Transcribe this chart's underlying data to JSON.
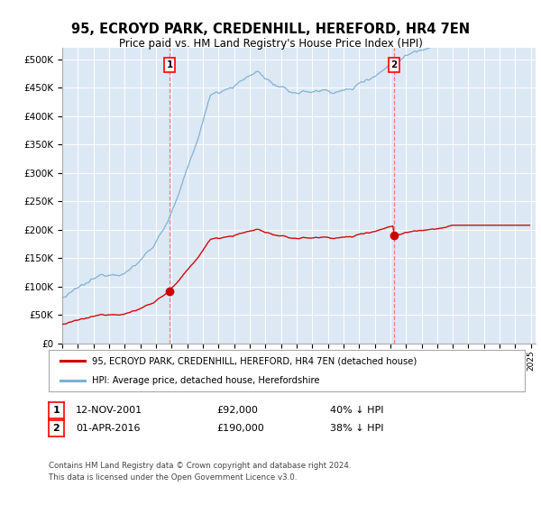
{
  "title1": "95, ECROYD PARK, CREDENHILL, HEREFORD, HR4 7EN",
  "title2": "Price paid vs. HM Land Registry's House Price Index (HPI)",
  "bg_color": "#dde8f5",
  "outer_bg": "#ffffff",
  "red_color": "#cc0000",
  "blue_color": "#7bafd4",
  "marker1_x": 2001.875,
  "marker1_y": 92000,
  "marker2_x": 2016.25,
  "marker2_y": 190000,
  "legend_red": "95, ECROYD PARK, CREDENHILL, HEREFORD, HR4 7EN (detached house)",
  "legend_blue": "HPI: Average price, detached house, Herefordshire",
  "note1_date": "12-NOV-2001",
  "note1_price": "£92,000",
  "note1_hpi": "40% ↓ HPI",
  "note2_date": "01-APR-2016",
  "note2_price": "£190,000",
  "note2_hpi": "38% ↓ HPI",
  "footer": "Contains HM Land Registry data © Crown copyright and database right 2024.\nThis data is licensed under the Open Government Licence v3.0.",
  "ylim": [
    0,
    520000
  ],
  "xlim_start": 1995.0,
  "xlim_end": 2025.3
}
